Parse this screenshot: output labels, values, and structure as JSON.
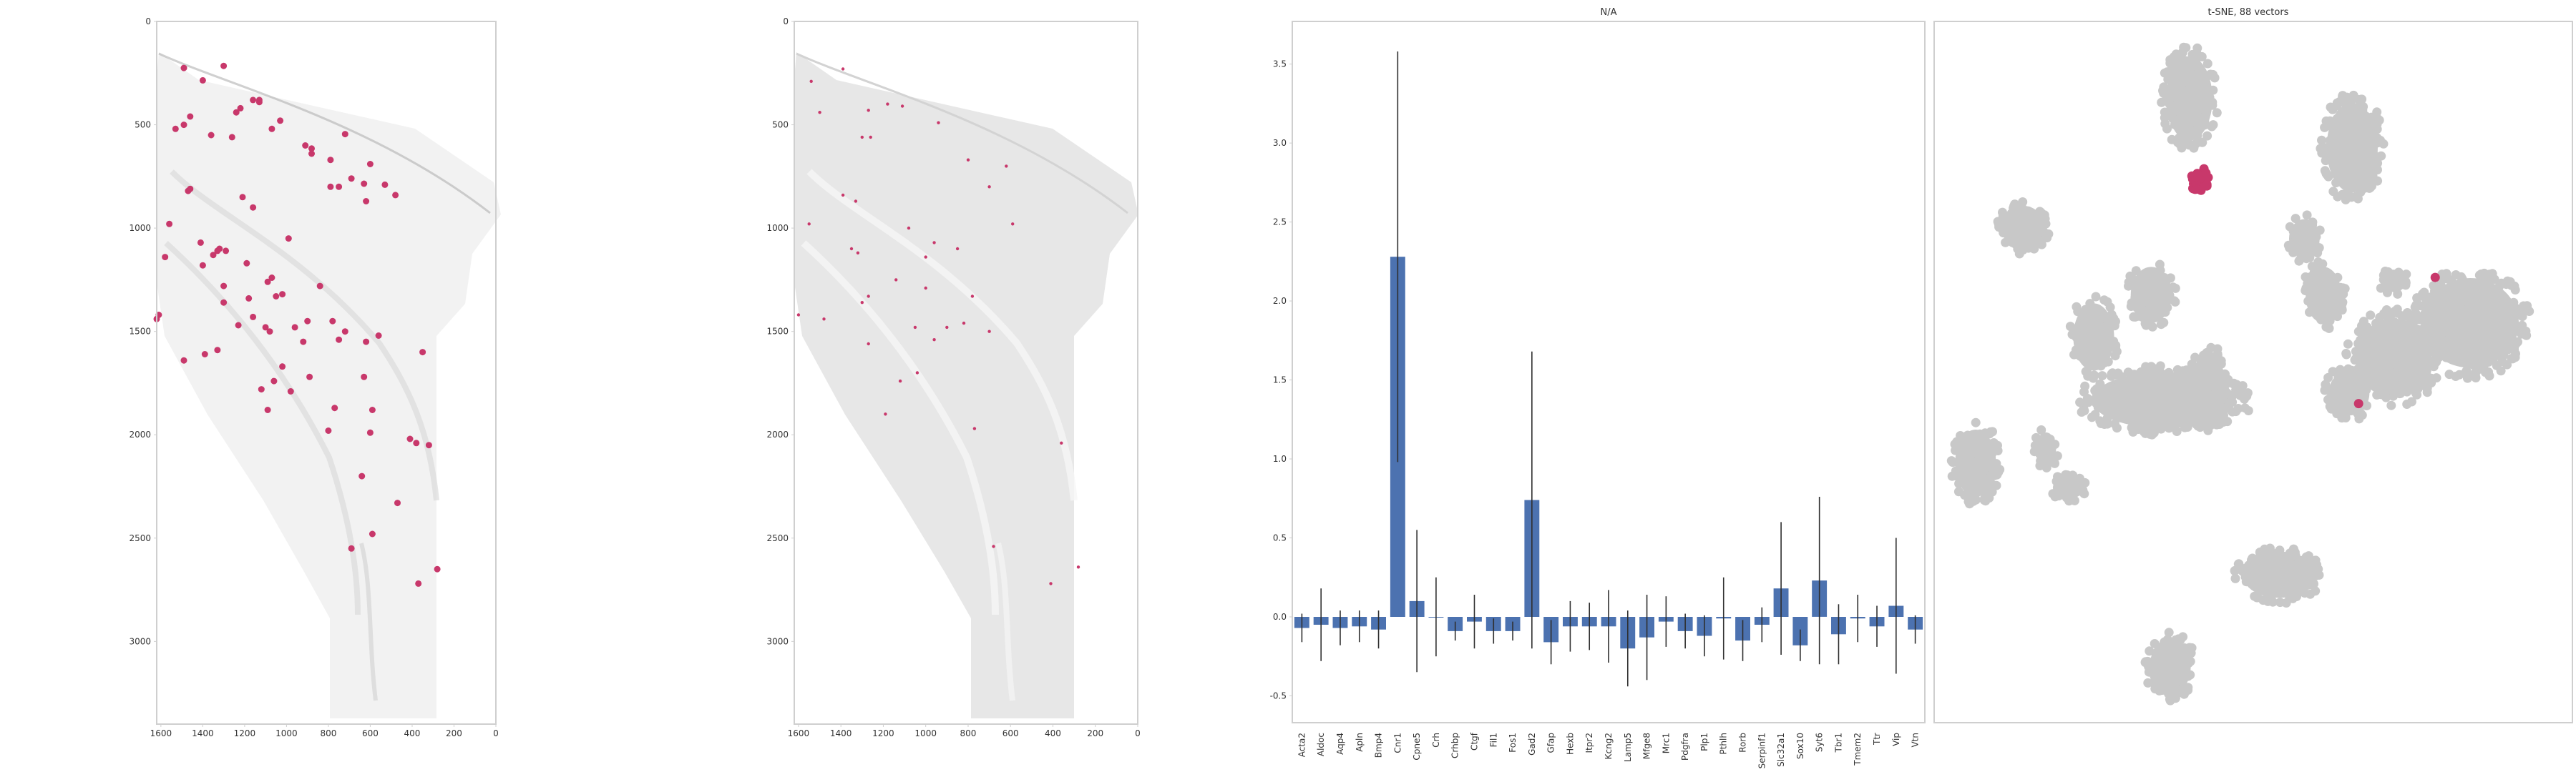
{
  "colors": {
    "accent": "#c8386b",
    "bar": "#4c72b0",
    "tissue": "#e4e4e4",
    "cluster": "#c8c8c8",
    "axes": "#cfcfcf",
    "text": "#333333"
  },
  "chart_data": [
    {
      "type": "scatter",
      "title": "",
      "xlim": [
        1620,
        0
      ],
      "ylim": [
        3400,
        0
      ],
      "x_ticks": [
        1600,
        1400,
        1200,
        1000,
        800,
        600,
        400,
        200,
        0
      ],
      "y_ticks": [
        0,
        500,
        1000,
        1500,
        2000,
        2500,
        3000
      ],
      "highlighted_points": [
        [
          1490,
          225
        ],
        [
          1300,
          215
        ],
        [
          1400,
          285
        ],
        [
          1130,
          390
        ],
        [
          1130,
          380
        ],
        [
          1160,
          380
        ],
        [
          1220,
          420
        ],
        [
          1240,
          440
        ],
        [
          1460,
          460
        ],
        [
          1490,
          500
        ],
        [
          1530,
          520
        ],
        [
          1360,
          550
        ],
        [
          1260,
          560
        ],
        [
          1030,
          480
        ],
        [
          1070,
          520
        ],
        [
          720,
          545
        ],
        [
          910,
          600
        ],
        [
          880,
          615
        ],
        [
          880,
          640
        ],
        [
          790,
          670
        ],
        [
          750,
          800
        ],
        [
          600,
          690
        ],
        [
          690,
          760
        ],
        [
          530,
          790
        ],
        [
          480,
          840
        ],
        [
          790,
          800
        ],
        [
          630,
          785
        ],
        [
          620,
          870
        ],
        [
          1210,
          850
        ],
        [
          1160,
          900
        ],
        [
          1460,
          810
        ],
        [
          1470,
          820
        ],
        [
          1560,
          980
        ],
        [
          990,
          1050
        ],
        [
          1410,
          1070
        ],
        [
          1320,
          1100
        ],
        [
          1330,
          1110
        ],
        [
          1290,
          1110
        ],
        [
          1350,
          1130
        ],
        [
          1400,
          1180
        ],
        [
          1580,
          1140
        ],
        [
          1190,
          1170
        ],
        [
          1070,
          1240
        ],
        [
          1090,
          1260
        ],
        [
          1300,
          1280
        ],
        [
          1180,
          1340
        ],
        [
          1300,
          1360
        ],
        [
          1050,
          1330
        ],
        [
          1020,
          1320
        ],
        [
          840,
          1280
        ],
        [
          1610,
          1420
        ],
        [
          1620,
          1440
        ],
        [
          1160,
          1430
        ],
        [
          1230,
          1470
        ],
        [
          1100,
          1480
        ],
        [
          1080,
          1500
        ],
        [
          960,
          1480
        ],
        [
          900,
          1450
        ],
        [
          780,
          1450
        ],
        [
          720,
          1500
        ],
        [
          920,
          1550
        ],
        [
          750,
          1540
        ],
        [
          620,
          1550
        ],
        [
          560,
          1520
        ],
        [
          1490,
          1640
        ],
        [
          1390,
          1610
        ],
        [
          1330,
          1590
        ],
        [
          1020,
          1670
        ],
        [
          1060,
          1740
        ],
        [
          890,
          1720
        ],
        [
          980,
          1790
        ],
        [
          1120,
          1780
        ],
        [
          630,
          1720
        ],
        [
          770,
          1870
        ],
        [
          590,
          1880
        ],
        [
          1090,
          1880
        ],
        [
          800,
          1980
        ],
        [
          600,
          1990
        ],
        [
          350,
          1600
        ],
        [
          410,
          2020
        ],
        [
          380,
          2040
        ],
        [
          320,
          2050
        ],
        [
          640,
          2200
        ],
        [
          470,
          2330
        ],
        [
          590,
          2480
        ],
        [
          690,
          2550
        ],
        [
          280,
          2650
        ],
        [
          370,
          2720
        ]
      ]
    },
    {
      "type": "scatter",
      "title": "",
      "xlim": [
        1620,
        0
      ],
      "ylim": [
        3400,
        0
      ],
      "x_ticks": [
        1600,
        1400,
        1200,
        1000,
        800,
        600,
        400,
        200,
        0
      ],
      "y_ticks": [
        0,
        500,
        1000,
        1500,
        2000,
        2500,
        3000
      ],
      "highlighted_points": [
        [
          1390,
          230
        ],
        [
          1540,
          290
        ],
        [
          1500,
          440
        ],
        [
          1270,
          430
        ],
        [
          1260,
          560
        ],
        [
          1180,
          400
        ],
        [
          1110,
          410
        ],
        [
          940,
          490
        ],
        [
          1300,
          560
        ],
        [
          800,
          670
        ],
        [
          620,
          700
        ],
        [
          700,
          800
        ],
        [
          1330,
          870
        ],
        [
          1390,
          840
        ],
        [
          1550,
          980
        ],
        [
          590,
          980
        ],
        [
          1080,
          1000
        ],
        [
          1350,
          1100
        ],
        [
          1320,
          1120
        ],
        [
          960,
          1070
        ],
        [
          850,
          1100
        ],
        [
          1000,
          1140
        ],
        [
          1140,
          1250
        ],
        [
          1270,
          1330
        ],
        [
          1300,
          1360
        ],
        [
          1000,
          1290
        ],
        [
          780,
          1330
        ],
        [
          1600,
          1420
        ],
        [
          1480,
          1440
        ],
        [
          1050,
          1480
        ],
        [
          900,
          1480
        ],
        [
          820,
          1460
        ],
        [
          700,
          1500
        ],
        [
          960,
          1540
        ],
        [
          1270,
          1560
        ],
        [
          1040,
          1700
        ],
        [
          1120,
          1740
        ],
        [
          1190,
          1900
        ],
        [
          770,
          1970
        ],
        [
          360,
          2040
        ],
        [
          680,
          2540
        ],
        [
          280,
          2640
        ],
        [
          410,
          2720
        ]
      ]
    },
    {
      "type": "bar",
      "title": "N/A",
      "xlabel": "",
      "ylabel": "",
      "categories": [
        "Acta2",
        "Aldoc",
        "Aqp4",
        "Apln",
        "Bmp4",
        "Cnr1",
        "Cpne5",
        "Crh",
        "Crhbp",
        "Ctgf",
        "Fil1",
        "Fos1",
        "Gad2",
        "Gfap",
        "Hexb",
        "Itpr2",
        "Kcng2",
        "Lamp5",
        "Mfge8",
        "Mrc1",
        "Pdgfra",
        "Plp1",
        "Pthlh",
        "Rorb",
        "Serpinf1",
        "Slc32a1",
        "Sox10",
        "Syt6",
        "Tbr1",
        "Tmem2",
        "Ttr",
        "Vip",
        "Vtn"
      ],
      "values": [
        -0.07,
        -0.05,
        -0.07,
        -0.06,
        -0.08,
        2.28,
        0.1,
        0.0,
        -0.09,
        -0.03,
        -0.09,
        -0.09,
        0.74,
        -0.16,
        -0.06,
        -0.06,
        -0.06,
        -0.2,
        -0.13,
        -0.03,
        -0.09,
        -0.12,
        -0.01,
        -0.15,
        -0.05,
        0.18,
        -0.18,
        0.23,
        -0.11,
        -0.01,
        -0.06,
        0.07,
        -0.08
      ],
      "errors": [
        0.09,
        0.23,
        0.11,
        0.1,
        0.12,
        1.3,
        0.45,
        0.25,
        0.06,
        0.17,
        0.08,
        0.06,
        0.94,
        0.14,
        0.16,
        0.15,
        0.23,
        0.24,
        0.27,
        0.16,
        0.11,
        0.13,
        0.26,
        0.13,
        0.11,
        0.42,
        0.1,
        0.53,
        0.19,
        0.15,
        0.13,
        0.43,
        0.09
      ],
      "ylim": [
        -0.67,
        3.77
      ],
      "y_ticks": [
        -0.5,
        0.0,
        0.5,
        1.0,
        1.5,
        2.0,
        2.5,
        3.0,
        3.5
      ],
      "grid": false,
      "error_bars": true
    },
    {
      "type": "scatter",
      "title": "t-SNE, 88 vectors",
      "axes_visible": false,
      "clusters": [
        {
          "color": "cluster",
          "cx": 0.4,
          "cy": 0.11,
          "rx": 0.045,
          "ry": 0.075,
          "n": 150
        },
        {
          "color": "cluster",
          "cx": 0.655,
          "cy": 0.18,
          "rx": 0.05,
          "ry": 0.08,
          "n": 170
        },
        {
          "color": "cluster",
          "cx": 0.14,
          "cy": 0.295,
          "rx": 0.042,
          "ry": 0.04,
          "n": 70
        },
        {
          "color": "cluster",
          "cx": 0.58,
          "cy": 0.31,
          "rx": 0.03,
          "ry": 0.035,
          "n": 40
        },
        {
          "color": "cluster",
          "cx": 0.61,
          "cy": 0.39,
          "rx": 0.035,
          "ry": 0.05,
          "n": 50
        },
        {
          "color": "cluster",
          "cx": 0.72,
          "cy": 0.37,
          "rx": 0.025,
          "ry": 0.02,
          "n": 20
        },
        {
          "color": "cluster",
          "cx": 0.34,
          "cy": 0.39,
          "rx": 0.04,
          "ry": 0.05,
          "n": 70
        },
        {
          "color": "cluster",
          "cx": 0.25,
          "cy": 0.45,
          "rx": 0.04,
          "ry": 0.06,
          "n": 80
        },
        {
          "color": "cluster",
          "cx": 0.36,
          "cy": 0.54,
          "rx": 0.14,
          "ry": 0.05,
          "n": 280
        },
        {
          "color": "cluster",
          "cx": 0.43,
          "cy": 0.51,
          "rx": 0.03,
          "ry": 0.05,
          "n": 60
        },
        {
          "color": "cluster",
          "cx": 0.72,
          "cy": 0.48,
          "rx": 0.075,
          "ry": 0.07,
          "n": 170
        },
        {
          "color": "cluster",
          "cx": 0.84,
          "cy": 0.43,
          "rx": 0.095,
          "ry": 0.08,
          "n": 280
        },
        {
          "color": "cluster",
          "cx": 0.65,
          "cy": 0.53,
          "rx": 0.04,
          "ry": 0.04,
          "n": 50
        },
        {
          "color": "cluster",
          "cx": 0.065,
          "cy": 0.63,
          "rx": 0.04,
          "ry": 0.06,
          "n": 90
        },
        {
          "color": "cluster",
          "cx": 0.175,
          "cy": 0.61,
          "rx": 0.02,
          "ry": 0.03,
          "n": 25
        },
        {
          "color": "cluster",
          "cx": 0.21,
          "cy": 0.665,
          "rx": 0.03,
          "ry": 0.02,
          "n": 30
        },
        {
          "color": "cluster",
          "cx": 0.54,
          "cy": 0.79,
          "rx": 0.07,
          "ry": 0.04,
          "n": 120
        },
        {
          "color": "cluster",
          "cx": 0.37,
          "cy": 0.92,
          "rx": 0.04,
          "ry": 0.05,
          "n": 90
        },
        {
          "color": "accent",
          "cx": 0.415,
          "cy": 0.225,
          "rx": 0.015,
          "ry": 0.018,
          "n": 28
        }
      ],
      "highlighted_points": [
        [
          0.785,
          0.365
        ],
        [
          0.665,
          0.545
        ]
      ]
    }
  ]
}
